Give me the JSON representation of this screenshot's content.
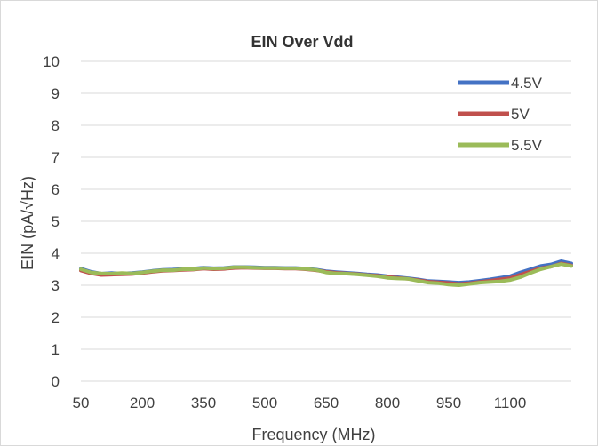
{
  "chart_data": {
    "type": "line",
    "title": "EIN Over Vdd",
    "xlabel": "Frequency (MHz)",
    "ylabel": "EIN (pA/√Hz)",
    "xlim": [
      50,
      1250
    ],
    "ylim": [
      0,
      10
    ],
    "x_ticks": [
      50,
      200,
      350,
      500,
      650,
      800,
      950,
      1100
    ],
    "y_ticks": [
      0,
      1,
      2,
      3,
      4,
      5,
      6,
      7,
      8,
      9,
      10
    ],
    "grid": "horizontal",
    "legend_position": "top-right",
    "x": [
      50,
      75,
      100,
      125,
      150,
      175,
      200,
      225,
      250,
      275,
      300,
      325,
      350,
      375,
      400,
      425,
      450,
      475,
      500,
      525,
      550,
      575,
      600,
      625,
      650,
      675,
      700,
      725,
      750,
      775,
      800,
      825,
      850,
      875,
      900,
      925,
      950,
      975,
      1000,
      1025,
      1050,
      1075,
      1100,
      1125,
      1150,
      1175,
      1200,
      1225,
      1250
    ],
    "series": [
      {
        "name": "4.5V",
        "color": "#4472c4",
        "values": [
          3.52,
          3.42,
          3.36,
          3.38,
          3.37,
          3.38,
          3.41,
          3.45,
          3.48,
          3.49,
          3.51,
          3.52,
          3.55,
          3.53,
          3.54,
          3.57,
          3.57,
          3.56,
          3.55,
          3.55,
          3.54,
          3.54,
          3.52,
          3.49,
          3.44,
          3.41,
          3.39,
          3.37,
          3.34,
          3.32,
          3.28,
          3.25,
          3.22,
          3.18,
          3.13,
          3.12,
          3.1,
          3.08,
          3.1,
          3.14,
          3.18,
          3.23,
          3.28,
          3.4,
          3.5,
          3.6,
          3.65,
          3.75,
          3.68
        ]
      },
      {
        "name": "5V",
        "color": "#c0504d",
        "values": [
          3.46,
          3.37,
          3.32,
          3.33,
          3.34,
          3.35,
          3.38,
          3.42,
          3.45,
          3.46,
          3.48,
          3.49,
          3.52,
          3.5,
          3.51,
          3.54,
          3.55,
          3.54,
          3.53,
          3.53,
          3.52,
          3.52,
          3.5,
          3.47,
          3.42,
          3.39,
          3.37,
          3.35,
          3.32,
          3.3,
          3.26,
          3.23,
          3.2,
          3.16,
          3.11,
          3.09,
          3.07,
          3.04,
          3.06,
          3.1,
          3.14,
          3.18,
          3.22,
          3.33,
          3.43,
          3.53,
          3.58,
          3.68,
          3.62
        ]
      },
      {
        "name": "5.5V",
        "color": "#9bbb59",
        "values": [
          3.5,
          3.4,
          3.37,
          3.36,
          3.38,
          3.37,
          3.4,
          3.44,
          3.47,
          3.47,
          3.5,
          3.5,
          3.54,
          3.52,
          3.53,
          3.56,
          3.56,
          3.55,
          3.54,
          3.54,
          3.53,
          3.53,
          3.51,
          3.48,
          3.4,
          3.37,
          3.36,
          3.34,
          3.31,
          3.28,
          3.23,
          3.21,
          3.2,
          3.14,
          3.08,
          3.06,
          3.02,
          3.0,
          3.04,
          3.08,
          3.1,
          3.12,
          3.16,
          3.25,
          3.38,
          3.5,
          3.58,
          3.66,
          3.6
        ]
      }
    ]
  }
}
